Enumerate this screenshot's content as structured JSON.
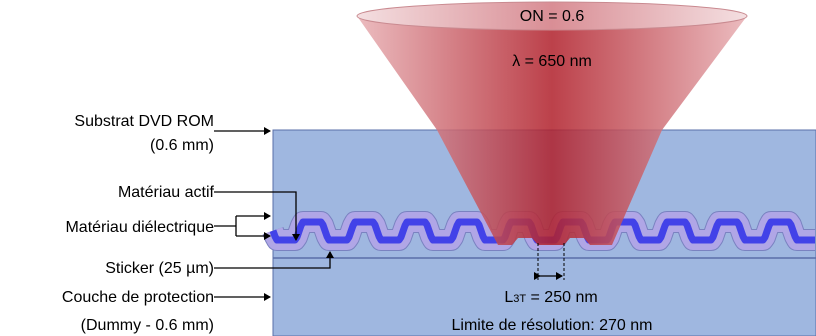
{
  "beam": {
    "numerical_aperture": "ON = 0.6",
    "wavelength": "λ = 650 nm"
  },
  "labels": {
    "substrate_line1": "Substrat DVD ROM",
    "substrate_line2": "(0.6 mm)",
    "active_material": "Matériau actif",
    "dielectric_material": "Matériau diélectrique",
    "sticker": "Sticker (25 µm)",
    "protection_line1": "Couche de protection",
    "protection_line2": "(Dummy - 0.6 mm)"
  },
  "measurements": {
    "l3t_prefix": "L",
    "l3t_subscript": "3T",
    "l3t_value": " = 250 nm",
    "resolution_limit": "Limite de résolution: 270 nm"
  },
  "colors": {
    "substrate_fill": "#9fb7e0",
    "layer_stroke": "#5a6fa8",
    "active_layer": "#3c3ce8",
    "dielectric_layer": "#b0a6e6",
    "beam_red": "#b8202a"
  }
}
